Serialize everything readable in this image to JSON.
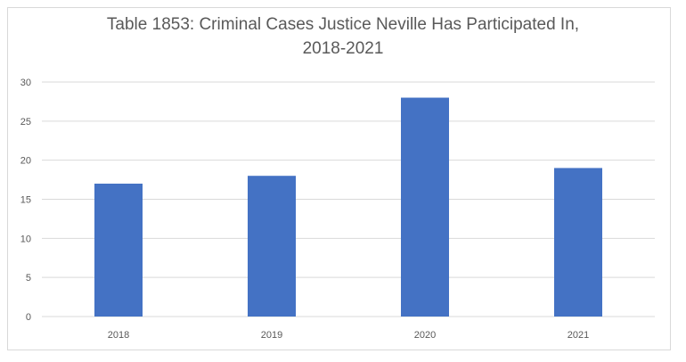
{
  "chart_data": {
    "type": "bar",
    "title_line1": "Table 1853: Criminal Cases Justice Neville Has Participated In,",
    "title_line2": "2018-2021",
    "categories": [
      "2018",
      "2019",
      "2020",
      "2021"
    ],
    "values": [
      17,
      18,
      28,
      19
    ],
    "xlabel": "",
    "ylabel": "",
    "ylim": [
      0,
      30
    ],
    "yticks": [
      0,
      5,
      10,
      15,
      20,
      25,
      30
    ],
    "grid": true,
    "legend": "none",
    "bar_color": "#4472C4",
    "grid_color": "#d9d9d9"
  }
}
